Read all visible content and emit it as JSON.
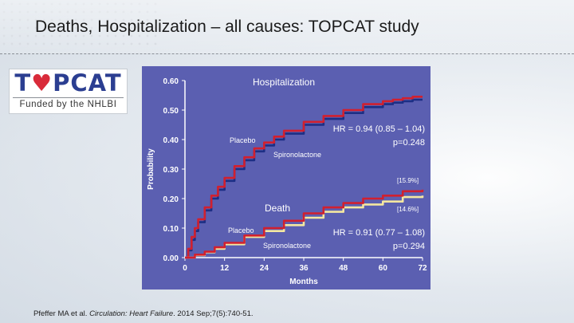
{
  "header": {
    "title": "Deaths, Hospitalization – all causes: TOPCAT study"
  },
  "logo": {
    "word_start": "T",
    "word_heart": "♥",
    "word_mid": "PC",
    "word_end": "AT",
    "subtitle": "Funded by the NHLBI"
  },
  "citation": {
    "authors": "Pfeffer MA et al. ",
    "journal": "Circulation: Heart Failure",
    "details": ". 2014 Sep;7(5):740-51."
  },
  "colors": {
    "plot_background": "#5b5fb1",
    "placebo": "#d1202f",
    "spironolactone_hosp": "#1d2f85",
    "spironolactone_death": "#f4e7a0"
  },
  "chart_data": {
    "type": "line",
    "xlabel": "Months",
    "ylabel": "Probability",
    "xlim": [
      0,
      72
    ],
    "ylim": [
      0,
      0.6
    ],
    "xticks": [
      "0",
      "12",
      "24",
      "36",
      "48",
      "60",
      "72"
    ],
    "yticks": [
      "0.00",
      "0.10",
      "0.20",
      "0.30",
      "0.40",
      "0.50",
      "0.60"
    ],
    "grid": false,
    "panels": [
      {
        "title": "Hospitalization",
        "hr_text": "HR = 0.94 (0.85 – 1.04)",
        "p_text": "p=0.248",
        "placebo_label": "Placebo",
        "spiro_label": "Spironolactone",
        "series": [
          {
            "name": "Placebo",
            "x": [
              0,
              1,
              2,
              3,
              4,
              6,
              8,
              10,
              12,
              15,
              18,
              21,
              24,
              27,
              30,
              36,
              42,
              48,
              54,
              60,
              63,
              66,
              69,
              72
            ],
            "y": [
              0,
              0.03,
              0.07,
              0.1,
              0.13,
              0.17,
              0.21,
              0.24,
              0.27,
              0.31,
              0.34,
              0.37,
              0.39,
              0.41,
              0.43,
              0.46,
              0.48,
              0.5,
              0.52,
              0.53,
              0.535,
              0.54,
              0.545,
              0.545
            ]
          },
          {
            "name": "Spironolactone",
            "x": [
              0,
              1,
              2,
              3,
              4,
              6,
              8,
              10,
              12,
              15,
              18,
              21,
              24,
              27,
              30,
              36,
              42,
              48,
              54,
              60,
              63,
              66,
              69,
              72
            ],
            "y": [
              0,
              0.025,
              0.06,
              0.09,
              0.12,
              0.16,
              0.2,
              0.23,
              0.26,
              0.3,
              0.33,
              0.36,
              0.38,
              0.4,
              0.42,
              0.45,
              0.47,
              0.49,
              0.51,
              0.52,
              0.525,
              0.53,
              0.535,
              0.535
            ]
          }
        ]
      },
      {
        "title": "Death",
        "hr_text": "HR = 0.91 (0.77 – 1.08)",
        "p_text": "p=0.294",
        "placebo_label": "Placebo",
        "spiro_label": "Spironolactone",
        "placebo_end_label": "[15.9%]",
        "spiro_end_label": "[14.6%]",
        "series": [
          {
            "name": "Placebo",
            "x": [
              0,
              3,
              6,
              9,
              12,
              18,
              24,
              30,
              36,
              42,
              48,
              54,
              60,
              66,
              72
            ],
            "y": [
              0,
              0.01,
              0.02,
              0.035,
              0.05,
              0.075,
              0.1,
              0.125,
              0.15,
              0.17,
              0.185,
              0.2,
              0.21,
              0.225,
              0.23
            ]
          },
          {
            "name": "Spironolactone",
            "x": [
              0,
              3,
              6,
              9,
              12,
              18,
              24,
              30,
              36,
              42,
              48,
              54,
              60,
              66,
              72
            ],
            "y": [
              0,
              0.008,
              0.018,
              0.03,
              0.045,
              0.07,
              0.09,
              0.11,
              0.135,
              0.155,
              0.17,
              0.18,
              0.19,
              0.205,
              0.21
            ]
          }
        ]
      }
    ]
  }
}
